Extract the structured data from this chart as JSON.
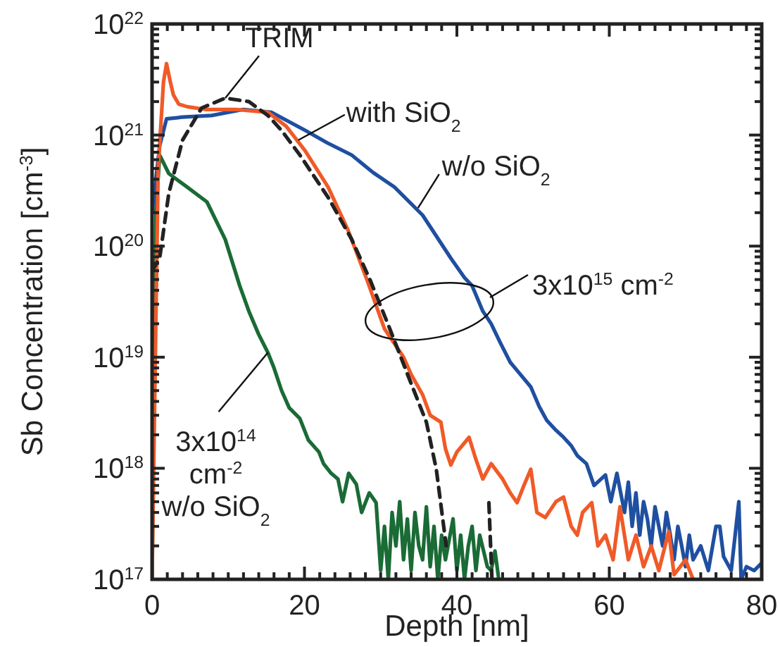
{
  "chart_data": {
    "type": "line",
    "xlabel": "Depth [nm]",
    "ylabel": "Sb Concentration [cm$^{-3}$]",
    "log": "y",
    "xlim": [
      0,
      80
    ],
    "ylim": [
      1e+17,
      1e+22
    ],
    "xticks": [
      0,
      {
        "value": 2,
        "label": null
      },
      {
        "value": 4,
        "label": null
      },
      {
        "value": 6,
        "label": null
      },
      {
        "value": 8,
        "label": null
      },
      {
        "value": 10,
        "label": null
      },
      {
        "value": 12,
        "label": null
      },
      {
        "value": 14,
        "label": null
      },
      {
        "value": 16,
        "label": null
      },
      {
        "value": 18,
        "label": null
      },
      20,
      {
        "value": 22,
        "label": null
      },
      {
        "value": 24,
        "label": null
      },
      {
        "value": 26,
        "label": null
      },
      {
        "value": 28,
        "label": null
      },
      {
        "value": 30,
        "label": null
      },
      {
        "value": 32,
        "label": null
      },
      {
        "value": 34,
        "label": null
      },
      {
        "value": 36,
        "label": null
      },
      {
        "value": 38,
        "label": null
      },
      40,
      {
        "value": 42,
        "label": null
      },
      {
        "value": 44,
        "label": null
      },
      {
        "value": 46,
        "label": null
      },
      {
        "value": 48,
        "label": null
      },
      {
        "value": 50,
        "label": null
      },
      {
        "value": 52,
        "label": null
      },
      {
        "value": 54,
        "label": null
      },
      {
        "value": 56,
        "label": null
      },
      {
        "value": 58,
        "label": null
      },
      60,
      {
        "value": 62,
        "label": null
      },
      {
        "value": 64,
        "label": null
      },
      {
        "value": 66,
        "label": null
      },
      {
        "value": 68,
        "label": null
      },
      {
        "value": 70,
        "label": null
      },
      {
        "value": 72,
        "label": null
      },
      {
        "value": 74,
        "label": null
      },
      {
        "value": 76,
        "label": null
      },
      {
        "value": 78,
        "label": null
      },
      80
    ],
    "yticks": [
      {
        "value": 1e+17,
        "label": "10$^{17}$"
      },
      {
        "value": 2e+17,
        "label": null
      },
      {
        "value": 3e+17,
        "label": null
      },
      {
        "value": 4e+17,
        "label": null
      },
      {
        "value": 5e+17,
        "label": null
      },
      {
        "value": 6e+17,
        "label": null
      },
      {
        "value": 7e+17,
        "label": null
      },
      {
        "value": 8e+17,
        "label": null
      },
      {
        "value": 9e+17,
        "label": null
      },
      {
        "value": 1e+18,
        "label": "10$^{18}$"
      },
      {
        "value": 2e+18,
        "label": null
      },
      {
        "value": 3e+18,
        "label": null
      },
      {
        "value": 4e+18,
        "label": null
      },
      {
        "value": 5e+18,
        "label": null
      },
      {
        "value": 6e+18,
        "label": null
      },
      {
        "value": 7e+18,
        "label": null
      },
      {
        "value": 8e+18,
        "label": null
      },
      {
        "value": 9e+18,
        "label": null
      },
      {
        "value": 1e+19,
        "label": "10$^{19}$"
      },
      {
        "value": 2e+19,
        "label": null
      },
      {
        "value": 3e+19,
        "label": null
      },
      {
        "value": 4e+19,
        "label": null
      },
      {
        "value": 5e+19,
        "label": null
      },
      {
        "value": 6e+19,
        "label": null
      },
      {
        "value": 7e+19,
        "label": null
      },
      {
        "value": 8e+19,
        "label": null
      },
      {
        "value": 9e+19,
        "label": null
      },
      {
        "value": 1e+20,
        "label": "10$^{20}$"
      },
      {
        "value": 2e+20,
        "label": null
      },
      {
        "value": 3e+20,
        "label": null
      },
      {
        "value": 4e+20,
        "label": null
      },
      {
        "value": 5e+20,
        "label": null
      },
      {
        "value": 6e+20,
        "label": null
      },
      {
        "value": 7e+20,
        "label": null
      },
      {
        "value": 8e+20,
        "label": null
      },
      {
        "value": 9e+20,
        "label": null
      },
      {
        "value": 1e+21,
        "label": "10$^{21}$"
      },
      {
        "value": 2e+21,
        "label": null
      },
      {
        "value": 3e+21,
        "label": null
      },
      {
        "value": 4e+21,
        "label": null
      },
      {
        "value": 5e+21,
        "label": null
      },
      {
        "value": 6e+21,
        "label": null
      },
      {
        "value": 7e+21,
        "label": null
      },
      {
        "value": 8e+21,
        "label": null
      },
      {
        "value": 9e+21,
        "label": null
      },
      {
        "value": 1e+22,
        "label": "10$^{22}$"
      }
    ],
    "series": [
      {
        "color": "#1a6b35",
        "x": [
          0,
          0.5,
          1,
          2.2,
          4.6,
          7.2,
          9.6,
          11.5,
          12.7,
          14,
          15.2,
          16,
          17,
          18,
          19.4,
          20.5,
          21.9,
          22.5,
          23.5,
          24.4,
          25,
          25.8,
          26.8,
          27.5,
          28.5,
          29.4,
          30,
          30.5,
          31,
          31.5,
          32,
          32.5,
          33,
          33.5,
          34,
          34.5,
          35,
          35.5,
          36,
          36.5,
          37,
          37.5,
          38,
          38.5,
          39.5,
          40,
          40.5,
          41,
          41.5,
          42,
          42.5,
          43,
          44,
          44.5,
          45,
          45.5
        ],
        "values": [
          1e+17,
          2e+20,
          6.6e+20,
          4.5e+20,
          3.4e+20,
          2.5e+20,
          1.15e+20,
          4.4e+19,
          2.6e+19,
          1.6e+19,
          1.1e+19,
          8e+18,
          5e+18,
          3.5e+18,
          2.8e+18,
          1.8e+18,
          1.4e+18,
          1.1e+18,
          9e+17,
          8e+17,
          5e+17,
          9e+17,
          7.2e+17,
          4e+17,
          6e+17,
          4.9e+17,
          1.2e+17,
          3e+17,
          1e+17,
          4e+17,
          2e+17,
          5e+17,
          1.5e+17,
          3.5e+17,
          1.2e+17,
          4e+17,
          2e+17,
          1.5e+17,
          4.5e+17,
          1.3e+17,
          3e+17,
          1e+17,
          2.5e+17,
          1.5e+17,
          3.5e+17,
          1.2e+17,
          2.5e+17,
          1e+17,
          2e+17,
          3e+17,
          1.2e+17,
          2.5e+17,
          1.3e+17,
          1.2e+17,
          1.8e+17,
          1e+17
        ]
      },
      {
        "color": "#1f4fa0",
        "x": [
          0,
          1,
          1.9,
          4,
          7.8,
          12,
          15.7,
          20.1,
          23,
          26.2,
          29,
          31.8,
          35.5,
          39.2,
          41,
          42,
          43.4,
          44.5,
          45.7,
          47,
          47.9,
          49.7,
          50.8,
          51.8,
          53,
          54,
          55,
          55.8,
          57,
          58,
          59.5,
          60.2,
          61,
          61.4,
          62,
          62.5,
          63,
          63.5,
          64,
          64.5,
          65,
          65.5,
          66,
          66.5,
          67,
          67.5,
          68,
          68.5,
          69,
          69.5,
          70,
          70.5,
          71,
          72,
          73,
          74,
          74.5,
          75,
          76,
          77,
          77.3,
          78,
          79,
          80
        ],
        "values": [
          2e+20,
          8e+20,
          1.4e+21,
          1.45e+21,
          1.5e+21,
          1.7e+21,
          1.6e+21,
          1.1e+21,
          8.5e+20,
          6.6e+20,
          4.6e+20,
          3.4e+20,
          1.9e+20,
          7.8e+19,
          5.2e+19,
          4.4e+19,
          2.6e+19,
          2e+19,
          1.35e+19,
          9e+18,
          7.6e+18,
          5.4e+18,
          3.6e+18,
          2.7e+18,
          2.2e+18,
          1.9e+18,
          1.6e+18,
          1.3e+18,
          1.1e+18,
          7e+17,
          8.7e+17,
          5e+17,
          9e+17,
          6.5e+17,
          4e+17,
          7.5e+17,
          3e+17,
          6e+17,
          2.5e+17,
          5e+17,
          3.5e+17,
          2e+17,
          4.5e+17,
          3e+17,
          2e+17,
          4e+17,
          2.5e+17,
          1.5e+17,
          3e+17,
          2e+17,
          1.3e+17,
          2.5e+17,
          1.5e+17,
          2e+17,
          1.2e+17,
          3e+17,
          3e+17,
          1.6e+17,
          1.2e+17,
          5e+17,
          1e+17,
          1.3e+17,
          1.2e+17,
          1.4e+17
        ]
      },
      {
        "color": "#f05a28",
        "x": [
          0,
          0.8,
          1.5,
          1.9,
          2.4,
          2.8,
          3.5,
          4.6,
          7,
          10.9,
          15.2,
          17.6,
          20.1,
          23.1,
          25.7,
          28.1,
          30.5,
          33,
          34,
          35.5,
          36.5,
          37.9,
          38.5,
          39.2,
          40,
          41.6,
          42.5,
          43.4,
          44.5,
          46,
          47,
          47.9,
          48.8,
          49.7,
          50.5,
          51.6,
          53,
          54,
          55,
          55.8,
          56.5,
          57.7,
          58.5,
          59.5,
          60.5,
          61.4,
          62.5,
          63.5,
          64.5,
          65.5,
          66.5,
          67.8,
          68.5,
          70,
          71
        ],
        "values": [
          1e+17,
          5e+20,
          3e+21,
          4.4e+21,
          3e+21,
          2.3e+21,
          1.9e+21,
          1.8e+21,
          1.7e+21,
          1.7e+21,
          1.6e+21,
          1.2e+21,
          7.2e+20,
          3.4e+20,
          1.4e+20,
          5.2e+19,
          1.8e+19,
          1e+19,
          7e+18,
          4.6e+18,
          3e+18,
          2.6e+18,
          1.5e+18,
          1.07e+18,
          1.4e+18,
          1.9e+18,
          1.2e+18,
          8e+17,
          1.1e+18,
          8e+17,
          6e+17,
          4.9e+17,
          7e+17,
          9.8e+17,
          4e+17,
          3.6e+17,
          5e+17,
          5.5e+17,
          3e+17,
          2.5e+17,
          4e+17,
          4.9e+17,
          2e+17,
          2.5e+17,
          1.5e+17,
          4.5e+17,
          1.5e+17,
          2.5e+17,
          1.3e+17,
          2e+17,
          1.2e+17,
          2.7e+17,
          1.1e+17,
          1.5e+17,
          1e+17
        ]
      },
      {
        "color": "#222222",
        "line_style": "dashed",
        "x": [
          0,
          1,
          2.2,
          4,
          6.5,
          9.6,
          12.7,
          15.2,
          17,
          19.4,
          23.1,
          26.2,
          28.7,
          31.2,
          33.6,
          36,
          37.3,
          38.6,
          41,
          44.2,
          44.6
        ],
        "values": [
          6e+19,
          7.8e+19,
          3e+20,
          9e+20,
          1.75e+21,
          2.15e+21,
          2e+21,
          1.5e+21,
          1.1e+21,
          6.6e+20,
          2.75e+20,
          1.15e+20,
          4.8e+19,
          1.8e+19,
          6.8e+18,
          2.6e+18,
          9.8e+17,
          2e+17,
          null,
          4.9e+17,
          1e+17
        ]
      }
    ],
    "annotations": [
      {
        "text": "TRIM",
        "x": 9.6,
        "y": 2.15e+21
      },
      {
        "text": "with SiO$_{2}$",
        "x": 19.2,
        "y": 9e+20
      },
      {
        "text": "w/o SiO$_{2}$",
        "x": 34.9,
        "y": 2.2e+20
      },
      "3x10$^{15}$ cm$^{-2}$",
      {
        "text": "3x10$^{14}$\ncm$^{-2}$\nw/o SiO$_{2}$",
        "x": 15.2,
        "y": 1.1e+19
      }
    ]
  }
}
